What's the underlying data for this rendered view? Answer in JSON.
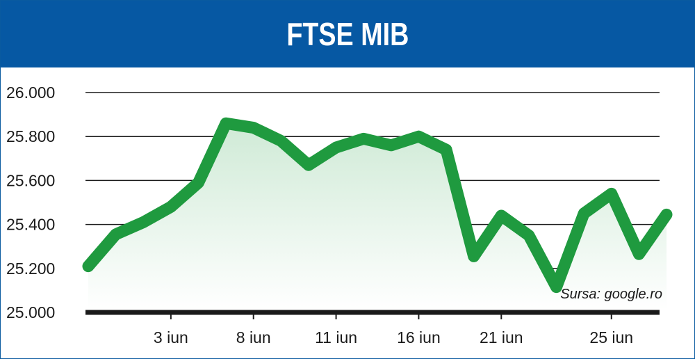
{
  "title": "FTSE MIB",
  "source": "Sursa: google.ro",
  "colors": {
    "header": "#0658a3",
    "line": "#1f9a3f",
    "grid": "#1a1a1a",
    "fill_top": "#cfead6",
    "fill_bottom": "#ffffff"
  },
  "chart_data": {
    "type": "line",
    "title": "FTSE MIB",
    "xlabel": "",
    "ylabel": "",
    "y_ticks": [
      "26.000",
      "25.800",
      "25.600",
      "25.400",
      "25.200",
      "25.000"
    ],
    "y_tick_values": [
      26000,
      25800,
      25600,
      25400,
      25200,
      25000
    ],
    "ylim": [
      25000,
      26000
    ],
    "x_tick_labels": [
      {
        "label": "3 iun",
        "index": 3
      },
      {
        "label": "8 iun",
        "index": 6
      },
      {
        "label": "11 iun",
        "index": 9
      },
      {
        "label": "16 iun",
        "index": 12
      },
      {
        "label": "21 iun",
        "index": 15
      },
      {
        "label": "25 iun",
        "index": 19
      }
    ],
    "grid": true,
    "series": [
      {
        "values": [
          25210,
          25355,
          25410,
          25480,
          25590,
          25860,
          25840,
          25780,
          25670,
          25750,
          25790,
          25760,
          25800,
          25740,
          25255,
          25440,
          25350,
          25115,
          25450,
          25540,
          25265,
          25445
        ]
      }
    ]
  }
}
